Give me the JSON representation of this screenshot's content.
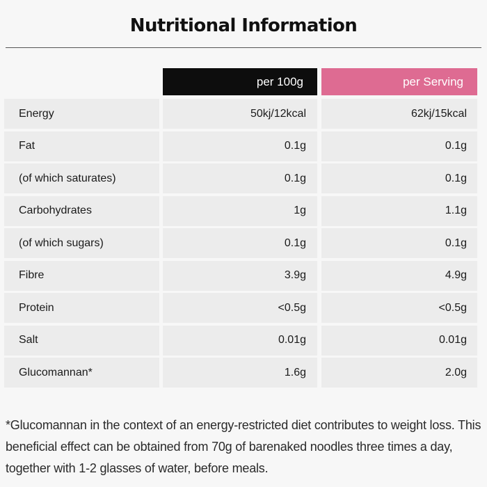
{
  "title": "Nutritional Information",
  "columns": {
    "per_100g": "per 100g",
    "per_serving": "per Serving"
  },
  "colors": {
    "per_100g_header": "#0d0d0d",
    "per_serving_header": "#de6b92",
    "row_background": "#ececec"
  },
  "rows": [
    {
      "label": "Energy",
      "per_100g": "50kj/12kcal",
      "per_serving": "62kj/15kcal"
    },
    {
      "label": "Fat",
      "per_100g": "0.1g",
      "per_serving": "0.1g"
    },
    {
      "label": "(of which saturates)",
      "per_100g": "0.1g",
      "per_serving": "0.1g"
    },
    {
      "label": "Carbohydrates",
      "per_100g": "1g",
      "per_serving": "1.1g"
    },
    {
      "label": "(of which sugars)",
      "per_100g": "0.1g",
      "per_serving": "0.1g"
    },
    {
      "label": "Fibre",
      "per_100g": "3.9g",
      "per_serving": "4.9g"
    },
    {
      "label": "Protein",
      "per_100g": "<0.5g",
      "per_serving": "<0.5g"
    },
    {
      "label": "Salt",
      "per_100g": "0.01g",
      "per_serving": "0.01g"
    },
    {
      "label": "Glucomannan*",
      "per_100g": "1.6g",
      "per_serving": "2.0g"
    }
  ],
  "footnote": "*Glucomannan in the context of an energy-restricted diet contributes to weight loss. This beneficial effect can be obtained from 70g of barenaked noodles three times a day, together with 1-2 glasses of water, before meals."
}
